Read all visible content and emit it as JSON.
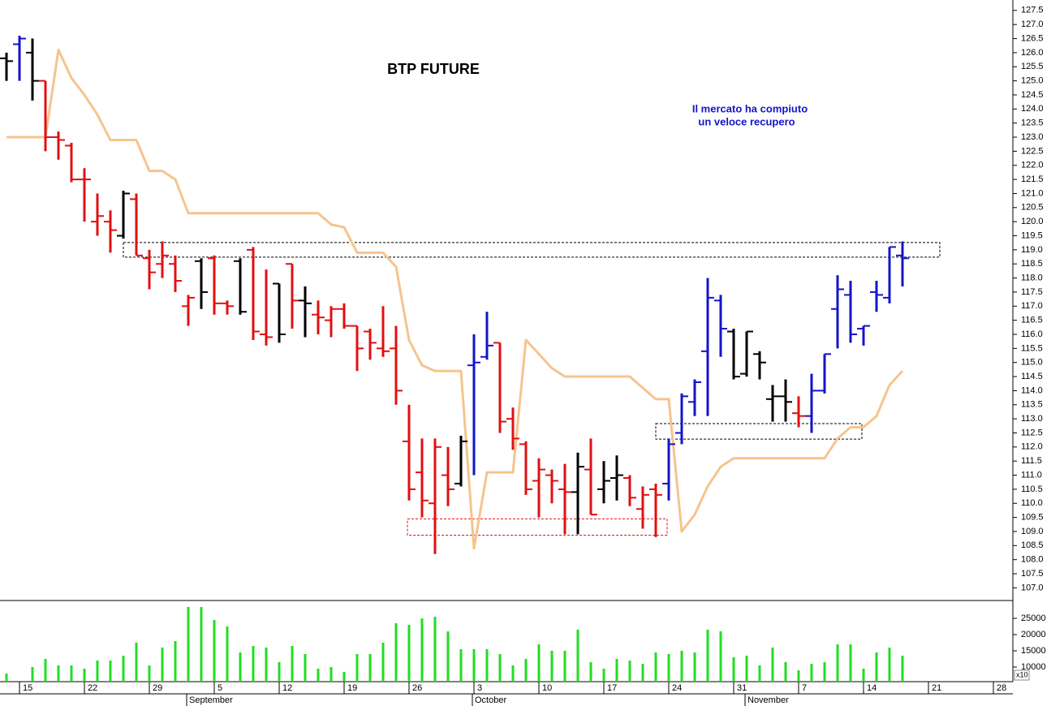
{
  "chart_data": [
    {
      "type": "ohlc",
      "title": "BTP FUTURE",
      "annotation": [
        "Il mercato ha compiuto",
        "un veloce recupero"
      ],
      "categories": [
        null,
        "15",
        null,
        null,
        null,
        null,
        "22",
        null,
        null,
        null,
        null,
        "29",
        null,
        null,
        null,
        null,
        "5",
        null,
        null,
        null,
        null,
        "12",
        null,
        null,
        null,
        null,
        "19",
        null,
        null,
        null,
        null,
        "26",
        null,
        null,
        null,
        null,
        "3",
        null,
        null,
        null,
        null,
        "10",
        null,
        null,
        null,
        null,
        "17",
        null,
        null,
        null,
        null,
        "24",
        null,
        null,
        null,
        null,
        "31",
        null,
        null,
        null,
        null,
        "7",
        null,
        null,
        null,
        null,
        "14",
        null,
        null,
        null,
        null,
        "21",
        null,
        null,
        null,
        null,
        "28",
        null
      ],
      "month_categories": [
        null,
        null,
        null,
        null,
        null,
        null,
        null,
        null,
        null,
        null,
        null,
        null,
        null,
        null,
        "September",
        null,
        null,
        null,
        null,
        null,
        null,
        null,
        null,
        null,
        null,
        null,
        null,
        null,
        null,
        null,
        null,
        null,
        null,
        null,
        null,
        null,
        "October",
        null,
        null,
        null,
        null,
        null,
        null,
        null,
        null,
        null,
        null,
        null,
        null,
        null,
        null,
        null,
        null,
        null,
        null,
        null,
        null,
        "November",
        null,
        null,
        null,
        null,
        null,
        null,
        null,
        null,
        null,
        null,
        null,
        null,
        null,
        null,
        null,
        null,
        null,
        null
      ],
      "open": [
        125.8,
        126.3,
        126.0,
        125.0,
        123.0,
        122.7,
        121.5,
        120.0,
        120.0,
        119.5,
        120.8,
        118.7,
        118.5,
        118.5,
        117.0,
        118.6,
        118.7,
        117.1,
        118.6,
        119.0,
        116.0,
        117.8,
        118.5,
        117.2,
        116.7,
        116.5,
        116.9,
        116.3,
        116.1,
        115.5,
        115.5,
        112.2,
        111.1,
        110.0,
        111.0,
        110.7,
        114.9,
        115.2,
        115.7,
        113.0,
        112.1,
        110.8,
        111.0,
        110.5,
        110.4,
        111.2,
        110.5,
        110.9,
        110.9,
        109.8,
        110.5,
        110.7,
        112.5,
        113.6,
        115.4,
        117.2,
        116.1,
        114.6,
        115.3,
        113.7,
        113.8,
        113.2,
        113.1,
        114.0,
        116.9,
        117.4,
        116.2,
        117.5,
        117.3,
        118.8,
        null,
        null,
        null,
        null,
        null,
        null,
        null,
        null
      ],
      "high": [
        126.0,
        126.6,
        126.5,
        125.0,
        123.2,
        122.8,
        121.9,
        121.0,
        120.4,
        121.1,
        121.0,
        119.0,
        119.3,
        118.8,
        117.4,
        118.7,
        118.8,
        117.2,
        118.7,
        119.1,
        118.3,
        117.8,
        118.5,
        117.7,
        117.2,
        117.0,
        117.1,
        116.3,
        116.2,
        117.0,
        116.3,
        113.5,
        112.3,
        112.3,
        112.0,
        112.4,
        116.0,
        116.8,
        115.7,
        113.4,
        112.2,
        111.6,
        111.2,
        111.4,
        111.8,
        112.3,
        111.5,
        111.7,
        111.0,
        110.6,
        110.7,
        112.3,
        113.9,
        114.4,
        118.0,
        117.4,
        116.2,
        116.1,
        115.4,
        114.2,
        114.4,
        113.8,
        114.6,
        115.3,
        118.1,
        117.9,
        116.3,
        117.9,
        119.1,
        119.3,
        null,
        null,
        null,
        null,
        null,
        null,
        null,
        null
      ],
      "low": [
        125.0,
        125.0,
        124.3,
        122.5,
        122.2,
        121.4,
        120.0,
        119.5,
        118.9,
        119.4,
        118.8,
        117.6,
        118.0,
        117.5,
        116.3,
        116.9,
        116.7,
        116.7,
        116.7,
        115.8,
        115.6,
        115.7,
        116.2,
        115.9,
        116.0,
        115.9,
        116.2,
        114.7,
        115.1,
        115.2,
        113.5,
        110.1,
        109.5,
        108.2,
        109.9,
        110.6,
        111.0,
        115.1,
        112.5,
        111.9,
        110.3,
        109.5,
        110.0,
        108.9,
        108.9,
        109.6,
        110.0,
        110.1,
        109.9,
        109.1,
        108.8,
        110.1,
        112.1,
        113.1,
        113.1,
        115.2,
        114.4,
        114.5,
        114.4,
        112.9,
        112.9,
        112.7,
        112.5,
        113.9,
        115.5,
        115.7,
        115.6,
        116.8,
        117.1,
        117.7,
        null,
        null,
        null,
        null,
        null,
        null,
        null,
        null
      ],
      "close": [
        125.7,
        126.5,
        125.0,
        123.0,
        122.9,
        121.5,
        121.5,
        120.2,
        119.7,
        121.0,
        118.8,
        118.2,
        118.8,
        117.9,
        117.3,
        117.5,
        117.1,
        117.0,
        116.8,
        116.1,
        115.9,
        116.0,
        117.2,
        117.1,
        116.6,
        116.9,
        116.3,
        115.5,
        115.7,
        115.4,
        114.0,
        110.5,
        110.1,
        112.0,
        110.5,
        112.2,
        115.0,
        115.6,
        112.9,
        112.3,
        110.5,
        111.2,
        110.8,
        110.4,
        111.3,
        109.6,
        110.8,
        111.0,
        110.2,
        110.3,
        110.3,
        112.1,
        113.8,
        114.3,
        117.3,
        116.2,
        114.5,
        116.1,
        115.0,
        113.8,
        113.6,
        113.1,
        114.0,
        115.3,
        117.6,
        116.0,
        116.3,
        117.4,
        119.1,
        118.7,
        null,
        null,
        null,
        null,
        null,
        null,
        null,
        null
      ],
      "colors": [
        "#000000",
        "#1414c8",
        "#000000",
        "#e01010",
        "#e01010",
        "#e01010",
        "#e01010",
        "#e01010",
        "#e01010",
        "#000000",
        "#e01010",
        "#e01010",
        "#e01010",
        "#e01010",
        "#e01010",
        "#000000",
        "#e01010",
        "#e01010",
        "#000000",
        "#e01010",
        "#e01010",
        "#000000",
        "#e01010",
        "#000000",
        "#e01010",
        "#e01010",
        "#e01010",
        "#e01010",
        "#e01010",
        "#e01010",
        "#e01010",
        "#e01010",
        "#e01010",
        "#e01010",
        "#e01010",
        "#000000",
        "#1414c8",
        "#1414c8",
        "#e01010",
        "#e01010",
        "#e01010",
        "#e01010",
        "#e01010",
        "#e01010",
        "#000000",
        "#e01010",
        "#000000",
        "#000000",
        "#e01010",
        "#e01010",
        "#e01010",
        "#1414c8",
        "#1414c8",
        "#1414c8",
        "#1414c8",
        "#1414c8",
        "#000000",
        "#000000",
        "#000000",
        "#000000",
        "#000000",
        "#e01010",
        "#1414c8",
        "#1414c8",
        "#1414c8",
        "#1414c8",
        "#1414c8",
        "#1414c8",
        "#1414c8",
        "#1414c8",
        null,
        null,
        null,
        null,
        null,
        null,
        null,
        null
      ],
      "line": {
        "color": "#f6c48e",
        "values": [
          123.0,
          123.0,
          123.0,
          123.0,
          126.1,
          125.1,
          124.5,
          123.8,
          122.9,
          122.9,
          122.9,
          121.8,
          121.8,
          121.5,
          120.3,
          120.3,
          120.3,
          120.3,
          120.3,
          120.3,
          120.3,
          120.3,
          120.3,
          120.3,
          120.3,
          119.9,
          119.8,
          118.9,
          118.9,
          118.9,
          118.4,
          115.8,
          114.9,
          114.7,
          114.7,
          114.7,
          108.4,
          111.1,
          111.1,
          111.1,
          115.8,
          115.3,
          114.8,
          114.5,
          114.5,
          114.5,
          114.5,
          114.5,
          114.5,
          114.1,
          113.7,
          113.7,
          109.0,
          109.6,
          110.6,
          111.3,
          111.6,
          111.6,
          111.6,
          111.6,
          111.6,
          111.6,
          111.6,
          111.6,
          112.3,
          112.7,
          112.7,
          113.1,
          114.2,
          114.7,
          null,
          null,
          null,
          null,
          null,
          null,
          null,
          null
        ]
      },
      "zones": [
        {
          "low": 118.74,
          "high": 119.26,
          "color": "#000000"
        },
        {
          "low": 108.87,
          "high": 109.45,
          "color": "#e01010"
        },
        {
          "low": 112.28,
          "high": 112.83,
          "color": "#000000"
        }
      ],
      "ylim": [
        106.55,
        127.87
      ],
      "yticks": [
        {
          "value": 107,
          "label": "107.0"
        },
        107.5,
        {
          "value": 108,
          "label": "108.0"
        },
        108.5,
        {
          "value": 109,
          "label": "109.0"
        },
        109.5,
        {
          "value": 110,
          "label": "110.0"
        },
        110.5,
        {
          "value": 111,
          "label": "111.0"
        },
        111.5,
        {
          "value": 112,
          "label": "112.0"
        },
        112.5,
        {
          "value": 113,
          "label": "113.0"
        },
        113.5,
        {
          "value": 114,
          "label": "114.0"
        },
        114.5,
        {
          "value": 115,
          "label": "115.0"
        },
        115.5,
        {
          "value": 116,
          "label": "116.0"
        },
        116.5,
        {
          "value": 117,
          "label": "117.0"
        },
        117.5,
        {
          "value": 118,
          "label": "118.0"
        },
        118.5,
        {
          "value": 119,
          "label": "119.0"
        },
        119.5,
        {
          "value": 120,
          "label": "120.0"
        },
        120.5,
        {
          "value": 121,
          "label": "121.0"
        },
        121.5,
        {
          "value": 122,
          "label": "122.0"
        },
        122.5,
        {
          "value": 123,
          "label": "123.0"
        },
        123.5,
        {
          "value": 124,
          "label": "124.0"
        },
        124.5,
        {
          "value": 125,
          "label": "125.0"
        },
        125.5,
        {
          "value": 126,
          "label": "126.0"
        },
        126.5,
        {
          "value": 127,
          "label": "127.0"
        },
        127.5
      ]
    },
    {
      "type": "bar",
      "color": "#22dd22",
      "scale_label": "x10",
      "values": [
        8000,
        null,
        10000,
        12500,
        10500,
        10500,
        9500,
        12000,
        12000,
        13500,
        17500,
        10500,
        16000,
        18000,
        28500,
        28500,
        24500,
        22500,
        14500,
        16500,
        16000,
        11500,
        16500,
        14000,
        9500,
        10000,
        8500,
        14000,
        14000,
        17500,
        23500,
        23000,
        25000,
        25500,
        21000,
        15500,
        15500,
        15500,
        14000,
        10500,
        12500,
        17000,
        15000,
        15000,
        21500,
        11500,
        9500,
        12500,
        12000,
        11000,
        14500,
        14000,
        15000,
        14500,
        21500,
        21000,
        13000,
        13500,
        10500,
        16000,
        11500,
        9000,
        11000,
        11500,
        17000,
        17000,
        9500,
        14500,
        16000,
        13500,
        null,
        null,
        null,
        null,
        null,
        null,
        null,
        null
      ],
      "ylim": [
        5500,
        30000
      ],
      "yticks": [
        10000,
        15000,
        20000,
        25000
      ]
    }
  ]
}
